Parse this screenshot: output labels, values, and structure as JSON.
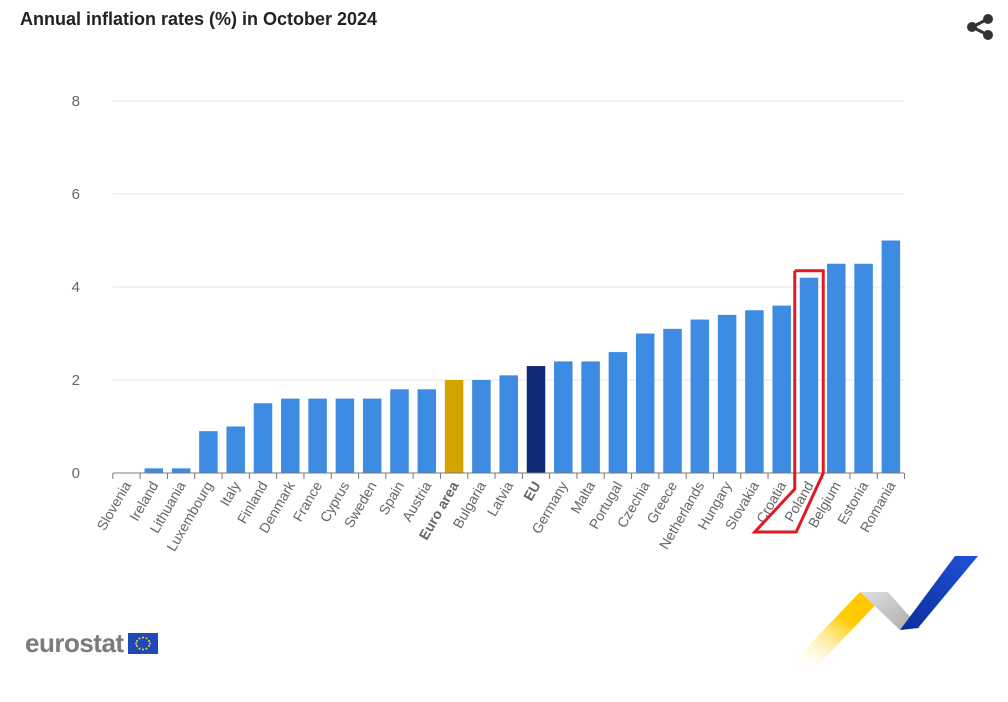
{
  "header": {
    "title": "Annual inflation rates (%) in October 2024",
    "share_icon": "share-icon"
  },
  "footer": {
    "logo_text": "eurostat",
    "flag_icon": "eu-flag-icon"
  },
  "colors": {
    "bar": "#3d8be2",
    "euro_area": "#d3a300",
    "eu": "#0f2a77",
    "highlight_box": "#e01a22",
    "grid": "#e6e6ee",
    "axis": "#7a7a7a",
    "label": "#666666"
  },
  "chart_data": {
    "type": "bar",
    "title": "Annual inflation rates (%) in October 2024",
    "xlabel": "",
    "ylabel": "",
    "ylim": [
      0,
      8
    ],
    "yticks": [
      0,
      2,
      4,
      6,
      8
    ],
    "grid": true,
    "legend": "none",
    "categories": [
      "Slovenia",
      "Ireland",
      "Lithuania",
      "Luxembourg",
      "Italy",
      "Finland",
      "Denmark",
      "France",
      "Cyprus",
      "Sweden",
      "Spain",
      "Austria",
      "Euro area",
      "Bulgaria",
      "Latvia",
      "EU",
      "Germany",
      "Malta",
      "Portugal",
      "Czechia",
      "Greece",
      "Netherlands",
      "Hungary",
      "Slovakia",
      "Croatia",
      "Poland",
      "Belgium",
      "Estonia",
      "Romania"
    ],
    "values": [
      0.0,
      0.1,
      0.1,
      0.9,
      1.0,
      1.5,
      1.6,
      1.6,
      1.6,
      1.6,
      1.8,
      1.8,
      2.0,
      2.0,
      2.1,
      2.3,
      2.4,
      2.4,
      2.6,
      3.0,
      3.1,
      3.3,
      3.4,
      3.5,
      3.6,
      4.2,
      4.5,
      4.5,
      5.0
    ],
    "bold_categories": [
      "Euro area",
      "EU"
    ],
    "bar_colors": {
      "Euro area": "#d3a300",
      "EU": "#0f2a77"
    },
    "annotation": {
      "type": "highlight-box",
      "target": "Poland",
      "color": "#e01a22"
    }
  }
}
